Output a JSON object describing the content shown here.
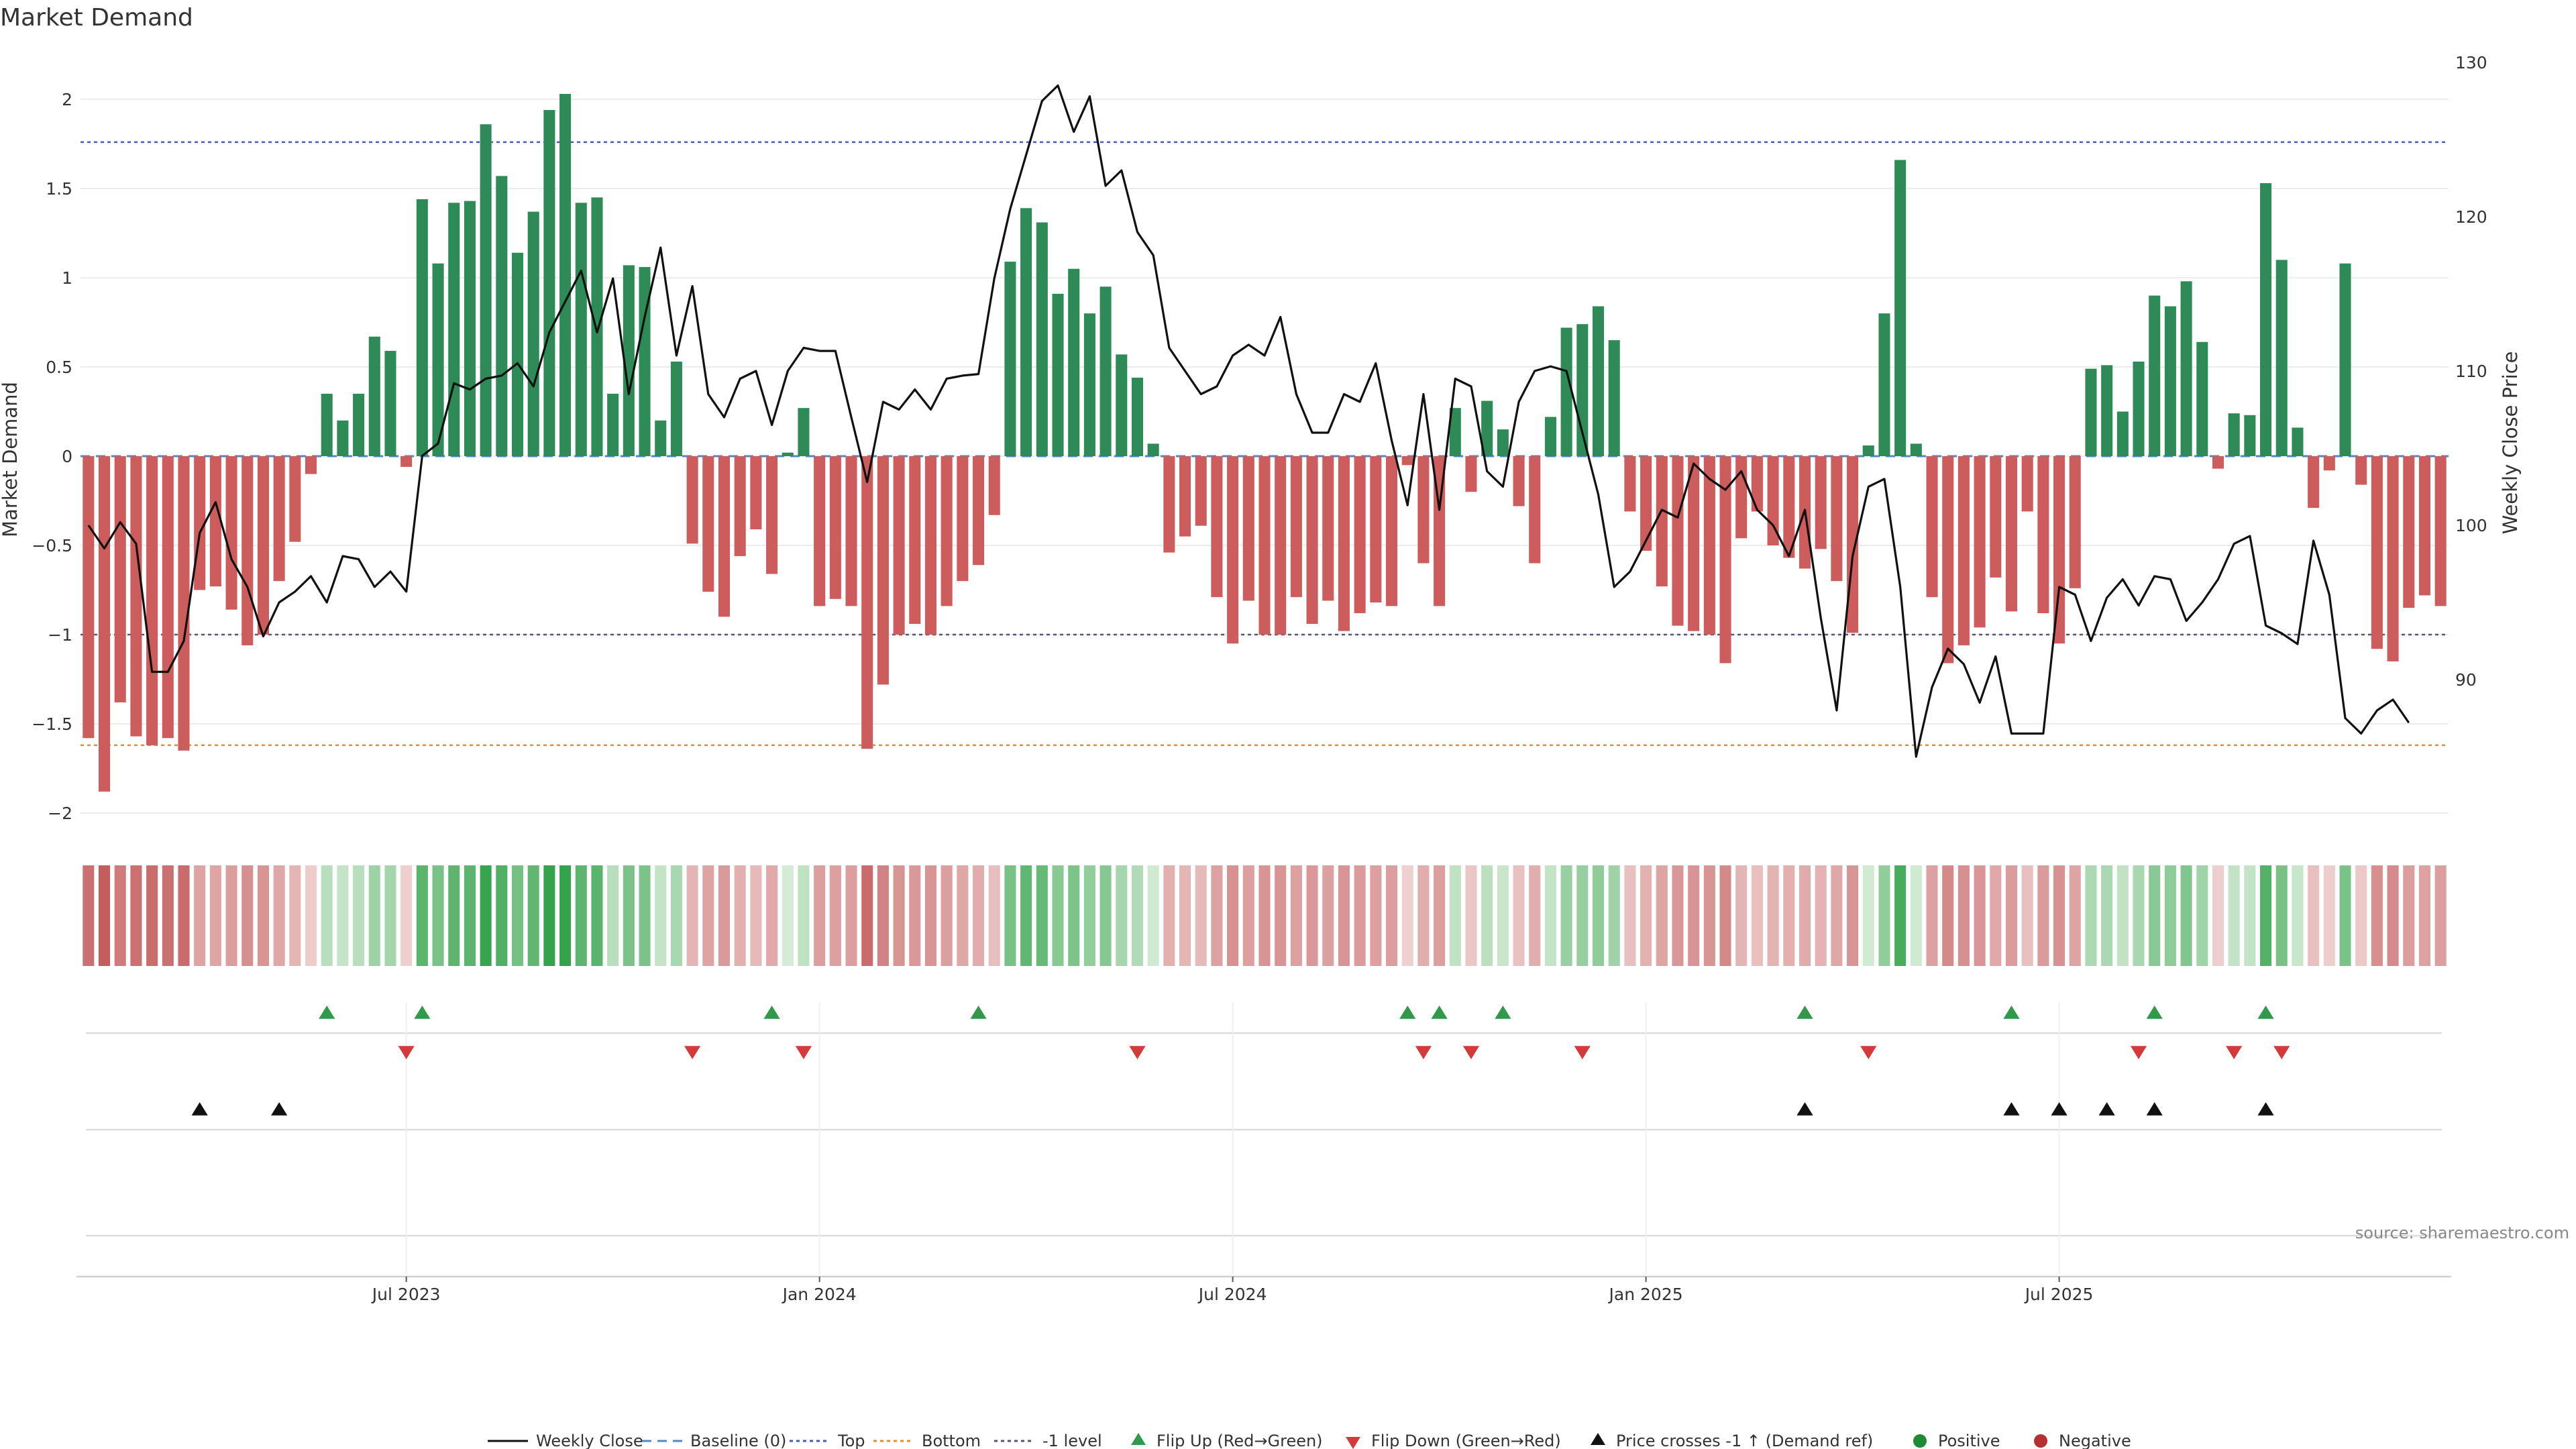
{
  "chart_data": {
    "type": "bar",
    "title": "Market Demand",
    "ylabel": "Market Demand",
    "ylabel_right": "Weekly Close Price",
    "ylim": [
      -2.2,
      2.2
    ],
    "ylim_right": [
      80,
      130
    ],
    "yticks": [
      -2,
      -1.5,
      -1,
      -0.5,
      0,
      0.5,
      1,
      1.5,
      2
    ],
    "ytick_labels": [
      "−2",
      "−1.5",
      "−1",
      "−0.5",
      "0",
      "0.5",
      "1",
      "1.5",
      "2"
    ],
    "yticks_right": [
      90,
      100,
      110,
      120,
      130
    ],
    "x_tick_labels": [
      {
        "index": 20,
        "label": "Jul 2023"
      },
      {
        "index": 46,
        "label": "Jan 2024"
      },
      {
        "index": 72,
        "label": "Jul 2024"
      },
      {
        "index": 98,
        "label": "Jan 2025"
      },
      {
        "index": 124,
        "label": "Jul 2025"
      }
    ],
    "reference_lines": {
      "top": 1.76,
      "bottom": -1.62,
      "minus_one": -1.0,
      "baseline": 0
    },
    "demand": [
      -1.58,
      -1.88,
      -1.38,
      -1.57,
      -1.62,
      -1.58,
      -1.65,
      -0.75,
      -0.73,
      -0.86,
      -1.06,
      -1.0,
      -0.7,
      -0.48,
      -0.1,
      0.35,
      0.2,
      0.35,
      0.67,
      0.59,
      -0.06,
      1.44,
      1.08,
      1.42,
      1.43,
      1.86,
      1.57,
      1.14,
      1.37,
      1.94,
      2.03,
      1.42,
      1.45,
      0.35,
      1.07,
      1.06,
      0.2,
      0.53,
      -0.49,
      -0.76,
      -0.9,
      -0.56,
      -0.41,
      -0.66,
      0.02,
      0.27,
      -0.84,
      -0.8,
      -0.84,
      -1.64,
      -1.28,
      -1.0,
      -0.94,
      -1.0,
      -0.84,
      -0.7,
      -0.61,
      -0.33,
      1.09,
      1.39,
      1.31,
      0.91,
      1.05,
      0.8,
      0.95,
      0.57,
      0.44,
      0.07,
      -0.54,
      -0.45,
      -0.39,
      -0.79,
      -1.05,
      -0.81,
      -1.0,
      -1.0,
      -0.79,
      -0.94,
      -0.81,
      -0.98,
      -0.88,
      -0.82,
      -0.84,
      -0.05,
      -0.6,
      -0.84,
      0.27,
      -0.2,
      0.31,
      0.15,
      -0.28,
      -0.6,
      0.22,
      0.72,
      0.74,
      0.84,
      0.65,
      -0.31,
      -0.53,
      -0.73,
      -0.95,
      -0.98,
      -1.0,
      -1.16,
      -0.46,
      -0.31,
      -0.5,
      -0.57,
      -0.63,
      -0.52,
      -0.7,
      -0.99,
      0.06,
      0.8,
      1.66,
      0.07,
      -0.79,
      -1.16,
      -1.06,
      -0.96,
      -0.68,
      -0.87,
      -0.31,
      -0.88,
      -1.05,
      -0.74,
      0.49,
      0.51,
      0.25,
      0.53,
      0.9,
      0.84,
      0.98,
      0.64,
      -0.07,
      0.24,
      0.23,
      1.53,
      1.1,
      0.16,
      -0.29,
      -0.08,
      1.08,
      -0.16,
      -1.08,
      -1.15,
      -0.85,
      -0.78,
      -0.84
    ],
    "weekly_close": [
      100,
      98.5,
      100.2,
      98.8,
      90.5,
      90.5,
      92.5,
      99.5,
      101.5,
      97.8,
      96,
      92.8,
      95,
      95.7,
      96.7,
      95,
      98,
      97.8,
      96,
      97,
      95.7,
      104.5,
      105.3,
      109.2,
      108.8,
      109.5,
      109.7,
      110.5,
      109,
      112.5,
      114.5,
      116.5,
      112.5,
      116,
      108.5,
      113.5,
      118,
      111,
      115.5,
      108.5,
      107,
      109.5,
      110,
      106.5,
      110,
      111.5,
      111.3,
      111.3,
      107,
      102.8,
      108,
      107.5,
      108.8,
      107.5,
      109.5,
      109.7,
      109.8,
      116,
      120.5,
      124,
      127.5,
      128.5,
      125.5,
      127.8,
      122,
      123,
      119,
      117.5,
      111.5,
      110,
      108.5,
      109,
      111,
      111.7,
      111,
      113.5,
      108.5,
      106,
      106,
      108.5,
      108,
      110.5,
      105.5,
      101.3,
      108.5,
      101,
      109.5,
      109,
      103.5,
      102.5,
      108,
      110,
      110.3,
      110,
      106,
      102,
      96,
      97,
      99,
      101,
      100.5,
      104,
      103,
      102.3,
      103.5,
      101,
      100,
      98,
      101,
      94,
      88,
      98,
      102.5,
      103,
      96,
      85,
      89.5,
      92,
      91,
      88.5,
      91.5,
      86.5,
      86.5,
      86.5,
      96,
      95.5,
      92.5,
      95.3,
      96.5,
      94.8,
      96.7,
      96.5,
      93.8,
      95,
      96.5,
      98.8,
      99.3,
      93.5,
      93,
      92.3,
      99,
      95.5,
      87.5,
      86.5,
      88,
      88.7,
      87.2
    ],
    "flip_up_indices": [
      15,
      21,
      43,
      56,
      83,
      85,
      89,
      108,
      121,
      130,
      137
    ],
    "flip_down_indices": [
      20,
      38,
      45,
      66,
      84,
      87,
      94,
      112,
      129,
      135,
      138
    ],
    "price_cross_indices": [
      7,
      12,
      108,
      121,
      124,
      127,
      130,
      137
    ],
    "source_label": "source: sharemaestro.com",
    "legend": [
      {
        "label": "Weekly Close",
        "marker": "line",
        "color": "#111111"
      },
      {
        "label": "Baseline (0)",
        "marker": "dash",
        "color": "#4e88c7"
      },
      {
        "label": "Top",
        "marker": "dotted",
        "color": "#4a5ab8"
      },
      {
        "label": "Bottom",
        "marker": "dotted",
        "color": "#e88c2a"
      },
      {
        "label": "-1 level",
        "marker": "dotted",
        "color": "#555577"
      },
      {
        "label": "Flip Up (Red→Green)",
        "marker": "tri-up",
        "color": "#2e9a4a"
      },
      {
        "label": "Flip Down (Green→Red)",
        "marker": "tri-down",
        "color": "#d43a3a"
      },
      {
        "label": "Price crosses -1 ↑ (Demand ref)",
        "marker": "tri-up",
        "color": "#111111"
      },
      {
        "label": "Positive",
        "marker": "circle",
        "color": "#1f8a34"
      },
      {
        "label": "Negative",
        "marker": "circle",
        "color": "#b53030"
      }
    ],
    "colors": {
      "positive_bar": "#2e8b57",
      "negative_bar": "#cd5c5c",
      "price_line": "#111111"
    }
  }
}
